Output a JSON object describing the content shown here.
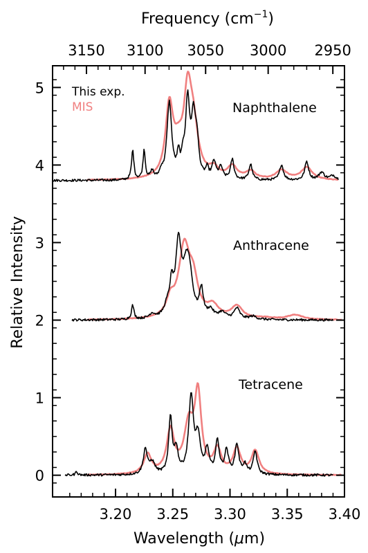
{
  "chart_data": {
    "type": "line",
    "xlabel": "Wavelength (μm)",
    "xlabel_text": "Wavelength (",
    "xlabel_unit_symbol": "μ",
    "xlabel_unit_rest": "m)",
    "ylabel": "Relative Intensity",
    "top_axis_label": "Frequency (cm⁻¹)",
    "top_axis_label_text": "Frequency  (cm",
    "top_axis_label_sup": "−1",
    "top_axis_label_close": ")",
    "xlim": [
      3.145,
      3.4
    ],
    "ylim": [
      -0.28,
      5.28
    ],
    "x_ticks": [
      3.2,
      3.25,
      3.3,
      3.35,
      3.4
    ],
    "x_tick_labels": [
      "3.20",
      "3.25",
      "3.30",
      "3.35",
      "3.40"
    ],
    "y_ticks": [
      0,
      1,
      2,
      3,
      4,
      5
    ],
    "y_tick_labels": [
      "0",
      "1",
      "2",
      "3",
      "4",
      "5"
    ],
    "top_ticks": [
      3150,
      3100,
      3050,
      3000,
      2950
    ],
    "top_tick_labels": [
      "3150",
      "3100",
      "3050",
      "3000",
      "2950"
    ],
    "legend": {
      "placement": "top-left",
      "entries": [
        {
          "name": "This exp.",
          "color": "#000000"
        },
        {
          "name": "MIS",
          "color": "#f08080"
        }
      ]
    },
    "colors": {
      "exp": "#000000",
      "mis": "#f08080"
    },
    "series": [
      {
        "name": "Naphthalene",
        "offset": 3.8,
        "exp": {
          "range": [
            3.145,
            3.395
          ],
          "base": 0.0,
          "noise": 0.015,
          "peaks": [
            [
              3.215,
              0.38,
              0.0012
            ],
            [
              3.225,
              0.38,
              0.0012
            ],
            [
              3.232,
              0.1,
              0.0015
            ],
            [
              3.24,
              0.08,
              0.0015
            ],
            [
              3.247,
              0.98,
              0.0025
            ],
            [
              3.255,
              0.25,
              0.0015
            ],
            [
              3.259,
              0.2,
              0.0015
            ],
            [
              3.263,
              0.98,
              0.0022
            ],
            [
              3.268,
              0.7,
              0.002
            ],
            [
              3.271,
              0.45,
              0.002
            ],
            [
              3.28,
              0.12,
              0.0015
            ],
            [
              3.286,
              0.22,
              0.002
            ],
            [
              3.292,
              0.15,
              0.002
            ],
            [
              3.302,
              0.26,
              0.0018
            ],
            [
              3.318,
              0.2,
              0.0018
            ],
            [
              3.345,
              0.2,
              0.002
            ],
            [
              3.367,
              0.24,
              0.002
            ],
            [
              3.38,
              0.1,
              0.003
            ],
            [
              3.39,
              0.06,
              0.003
            ]
          ]
        },
        "mis": {
          "range": [
            3.175,
            3.395
          ],
          "base": 0.0,
          "noise": 0.004,
          "peaks": [
            [
              3.247,
              0.9,
              0.004
            ],
            [
              3.263,
              0.95,
              0.004
            ],
            [
              3.268,
              0.6,
              0.005
            ],
            [
              3.255,
              0.3,
              0.005
            ],
            [
              3.286,
              0.12,
              0.005
            ],
            [
              3.302,
              0.16,
              0.005
            ],
            [
              3.318,
              0.1,
              0.005
            ],
            [
              3.345,
              0.12,
              0.006
            ],
            [
              3.367,
              0.16,
              0.006
            ]
          ]
        }
      },
      {
        "name": "Anthracene",
        "offset": 2.0,
        "exp": {
          "range": [
            3.162,
            3.39
          ],
          "base": 0.0,
          "noise": 0.015,
          "peaks": [
            [
              3.215,
              0.18,
              0.0013
            ],
            [
              3.232,
              0.06,
              0.003
            ],
            [
              3.245,
              0.12,
              0.003
            ],
            [
              3.249,
              0.35,
              0.002
            ],
            [
              3.255,
              0.9,
              0.003
            ],
            [
              3.262,
              0.6,
              0.004
            ],
            [
              3.265,
              0.3,
              0.003
            ],
            [
              3.275,
              0.35,
              0.002
            ],
            [
              3.283,
              0.1,
              0.003
            ],
            [
              3.293,
              0.08,
              0.004
            ],
            [
              3.306,
              0.14,
              0.003
            ],
            [
              3.32,
              0.04,
              0.004
            ]
          ]
        },
        "mis": {
          "range": [
            3.175,
            3.398
          ],
          "base": 0.0,
          "noise": 0.004,
          "peaks": [
            [
              3.248,
              0.2,
              0.004
            ],
            [
              3.26,
              0.9,
              0.006
            ],
            [
              3.268,
              0.4,
              0.005
            ],
            [
              3.285,
              0.15,
              0.006
            ],
            [
              3.306,
              0.16,
              0.006
            ],
            [
              3.33,
              0.02,
              0.01
            ],
            [
              3.357,
              0.06,
              0.008
            ]
          ]
        }
      },
      {
        "name": "Tetracene",
        "offset": 0.0,
        "exp": {
          "range": [
            3.156,
            3.39
          ],
          "base": 0.0,
          "noise": 0.015,
          "peaks": [
            [
              3.166,
              0.05,
              0.001
            ],
            [
              3.226,
              0.32,
              0.002
            ],
            [
              3.232,
              0.15,
              0.003
            ],
            [
              3.248,
              0.72,
              0.0018
            ],
            [
              3.253,
              0.3,
              0.002
            ],
            [
              3.266,
              0.98,
              0.0025
            ],
            [
              3.272,
              0.45,
              0.0025
            ],
            [
              3.28,
              0.3,
              0.002
            ],
            [
              3.289,
              0.42,
              0.002
            ],
            [
              3.297,
              0.3,
              0.002
            ],
            [
              3.306,
              0.38,
              0.002
            ],
            [
              3.313,
              0.12,
              0.002
            ],
            [
              3.322,
              0.3,
              0.002
            ]
          ]
        },
        "mis": {
          "range": [
            3.175,
            3.398
          ],
          "base": 0.0,
          "noise": 0.004,
          "peaks": [
            [
              3.228,
              0.25,
              0.004
            ],
            [
              3.248,
              0.55,
              0.004
            ],
            [
              3.264,
              0.6,
              0.005
            ],
            [
              3.272,
              0.98,
              0.0035
            ],
            [
              3.289,
              0.3,
              0.004
            ],
            [
              3.306,
              0.32,
              0.004
            ],
            [
              3.322,
              0.3,
              0.004
            ]
          ]
        }
      }
    ]
  }
}
